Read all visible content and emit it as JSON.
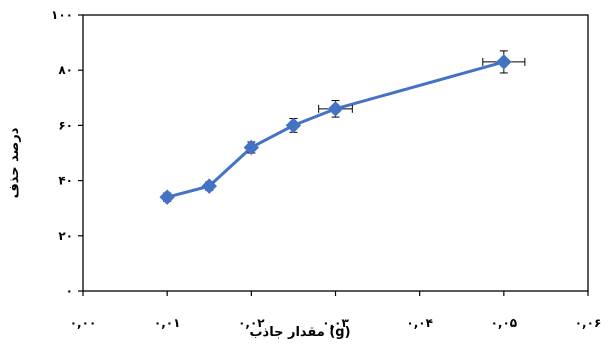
{
  "chart_data": {
    "type": "line",
    "title": "",
    "xlabel": "مقدار جاذب (g)",
    "ylabel": "درصد حذف",
    "xlim": [
      0,
      0.06
    ],
    "ylim": [
      0,
      100
    ],
    "x_ticks": [
      0,
      0.01,
      0.02,
      0.03,
      0.04,
      0.05,
      0.06
    ],
    "x_tick_labels": [
      "۰,۰۰",
      "۰,۰۱",
      "۰,۰۲",
      "۰,۰۳",
      "۰,۰۴",
      "۰,۰۵",
      "۰,۰۶"
    ],
    "y_ticks": [
      0,
      20,
      40,
      60,
      80,
      100
    ],
    "y_tick_labels": [
      "۰",
      "۲۰",
      "۴۰",
      "۶۰",
      "۸۰",
      "۱۰۰"
    ],
    "grid": false,
    "legend": "none",
    "series_color": "#4472C4",
    "series": [
      {
        "x": [
          0.01,
          0.015,
          0.02,
          0.025,
          0.03,
          0.05
        ],
        "y": [
          34,
          38,
          52,
          60,
          66,
          83
        ],
        "x_error": [
          0,
          0,
          0,
          0,
          0.002,
          0.0025
        ],
        "y_error": [
          1.5,
          1.5,
          2,
          2.5,
          3,
          4
        ]
      }
    ]
  }
}
